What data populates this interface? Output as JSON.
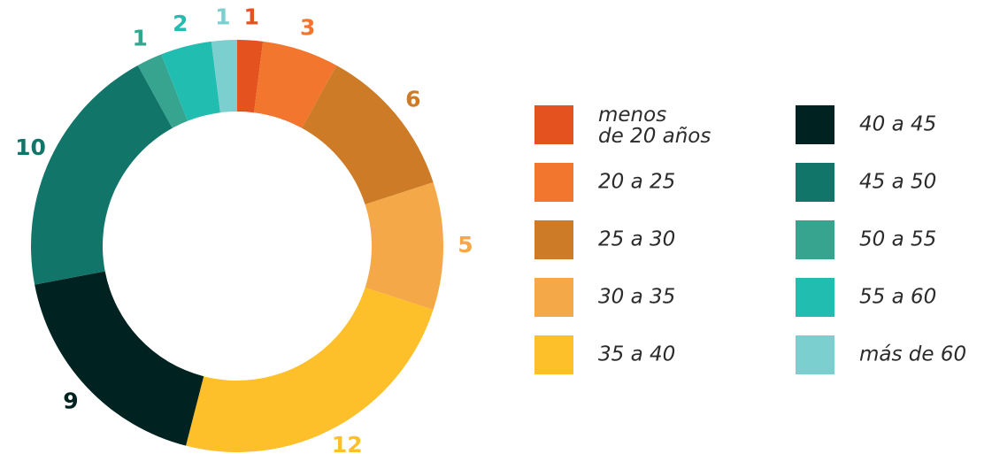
{
  "chart_data": {
    "type": "donut",
    "categories": [
      "menos de 20 años",
      "20 a 25",
      "25 a 30",
      "30 a 35",
      "35 a 40",
      "40 a 45",
      "45 a 50",
      "50 a 55",
      "55 a 60",
      "más de 60"
    ],
    "values": [
      1,
      3,
      6,
      5,
      12,
      9,
      10,
      1,
      2,
      1
    ],
    "colors": [
      "#e4531f",
      "#f2762e",
      "#cd7b27",
      "#f4a847",
      "#fdc02a",
      "#002220",
      "#12756a",
      "#37a48f",
      "#22bdb1",
      "#7ccfcf"
    ],
    "legend": "right"
  }
}
